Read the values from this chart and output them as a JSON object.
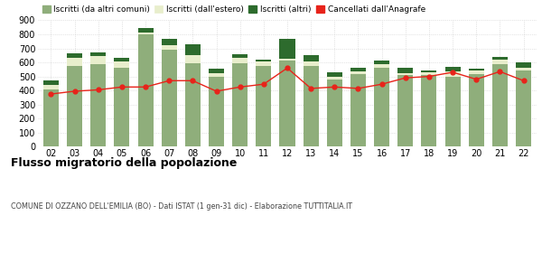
{
  "years": [
    "02",
    "03",
    "04",
    "05",
    "06",
    "07",
    "08",
    "09",
    "10",
    "11",
    "12",
    "13",
    "14",
    "15",
    "16",
    "17",
    "18",
    "19",
    "20",
    "21",
    "22"
  ],
  "iscritti_comuni": [
    410,
    575,
    590,
    565,
    800,
    690,
    595,
    495,
    595,
    575,
    615,
    575,
    480,
    515,
    565,
    510,
    510,
    495,
    520,
    590,
    545
  ],
  "iscritti_estero": [
    30,
    55,
    55,
    45,
    15,
    35,
    55,
    30,
    35,
    30,
    10,
    30,
    20,
    20,
    20,
    15,
    20,
    40,
    20,
    30,
    20
  ],
  "iscritti_altri": [
    30,
    35,
    25,
    20,
    30,
    45,
    80,
    30,
    30,
    15,
    140,
    45,
    30,
    25,
    30,
    35,
    15,
    35,
    15,
    20,
    35
  ],
  "cancellati": [
    375,
    395,
    405,
    425,
    425,
    470,
    470,
    395,
    425,
    445,
    560,
    415,
    425,
    415,
    445,
    490,
    500,
    530,
    480,
    535,
    470
  ],
  "color_comuni": "#8fae7b",
  "color_estero": "#e8eecc",
  "color_altri": "#2d6b2d",
  "color_cancellati": "#e8231a",
  "title": "Flusso migratorio della popolazione",
  "subtitle": "COMUNE DI OZZANO DELL'EMILIA (BO) - Dati ISTAT (1 gen-31 dic) - Elaborazione TUTTITALIA.IT",
  "legend_labels": [
    "Iscritti (da altri comuni)",
    "Iscritti (dall'estero)",
    "Iscritti (altri)",
    "Cancellati dall'Anagrafe"
  ],
  "ylim": [
    0,
    900
  ],
  "yticks": [
    0,
    100,
    200,
    300,
    400,
    500,
    600,
    700,
    800,
    900
  ],
  "background_color": "#ffffff",
  "grid_color": "#cccccc"
}
